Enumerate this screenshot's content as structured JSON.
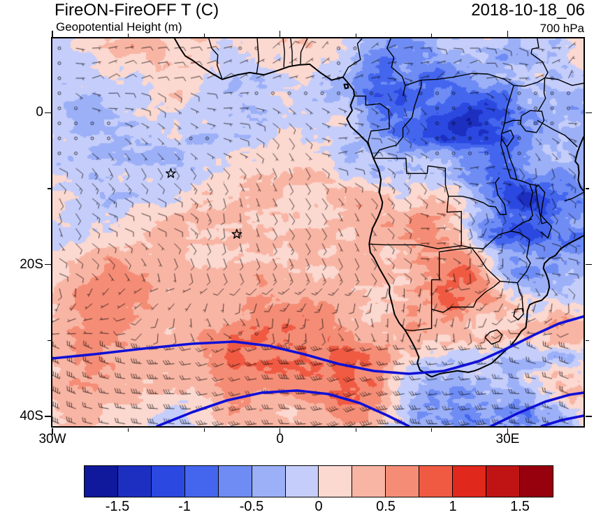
{
  "header": {
    "title": "FireON-FireOFF T (C)",
    "timestamp": "2018-10-18_06",
    "subtitle": "Geopotential Height (m)",
    "level": "700 hPa"
  },
  "axes": {
    "x": {
      "tick_labels": [
        "30W",
        "0",
        "30E"
      ],
      "tick_lons": [
        -30,
        0,
        30
      ],
      "minor_lons": [
        -20,
        -10,
        10,
        20
      ]
    },
    "y": {
      "tick_labels": [
        "0",
        "20S",
        "40S"
      ],
      "tick_lats": [
        0,
        -20,
        -40
      ],
      "minor_lats": [
        -10,
        -30
      ]
    },
    "lon_range": [
      -30,
      40
    ],
    "lat_range": [
      9.8,
      -41.3
    ]
  },
  "colorbar": {
    "units": "C",
    "cell_colors": [
      "#10189b",
      "#1c2fc0",
      "#2b49e0",
      "#4466ee",
      "#6e8cf4",
      "#9cb0f8",
      "#c5cdfa",
      "#fbd8d0",
      "#f9b5a4",
      "#f58d76",
      "#f05a43",
      "#e0281c",
      "#c01414",
      "#97000d"
    ],
    "levels": [
      -1.5,
      -1.25,
      -1,
      -0.75,
      -0.5,
      -0.25,
      0,
      0.25,
      0.5,
      0.75,
      1,
      1.25,
      1.5
    ],
    "boundary_labels": [
      "-1.5",
      "-1",
      "-0.5",
      "0",
      "0.5",
      "1",
      "1.5"
    ]
  },
  "markers": [
    {
      "symbol": "star",
      "lon": -14.4,
      "lat": -8.0
    },
    {
      "symbol": "star",
      "lon": -5.7,
      "lat": -16.0
    }
  ],
  "chart_data": {
    "type": "heatmap",
    "title": "FireON-FireOFF T (C)",
    "subtitle": "Geopotential Height (m)",
    "valid_time": "2018-10-18_06",
    "pressure_level": "700 hPa",
    "units": "C",
    "lon_range": [
      -30,
      40
    ],
    "lat_range": [
      -41.3,
      9.8
    ],
    "color_levels": [
      -1.5,
      -1.25,
      -1,
      -0.75,
      -0.5,
      -0.25,
      0,
      0.25,
      0.5,
      0.75,
      1,
      1.25,
      1.5
    ],
    "palette": [
      "#10189b",
      "#1c2fc0",
      "#2b49e0",
      "#4466ee",
      "#6e8cf4",
      "#9cb0f8",
      "#c5cdfa",
      "#fbd8d0",
      "#f9b5a4",
      "#f58d76",
      "#f05a43",
      "#e0281c",
      "#c01414",
      "#97000d"
    ],
    "overlays": [
      "coastlines and country borders of Africa",
      "wind barbs on a regular grid",
      "thick blue geopotential height contours between about 33S and 41S",
      "two open star markers in the tropical South Atlantic"
    ],
    "field_summary": [
      "weak differences (-0.5 to 0.5 C) over most of the South Atlantic ocean",
      "strong positive anomalies (>1 C) over Angola / Namibia and scattered subtropical patches",
      "strong negative anomalies (<-1 C) over the Congo basin, East Africa and the northeast sector",
      "high-amplitude mixed noise in the northwest corner and along the 35-40S storm track"
    ]
  }
}
